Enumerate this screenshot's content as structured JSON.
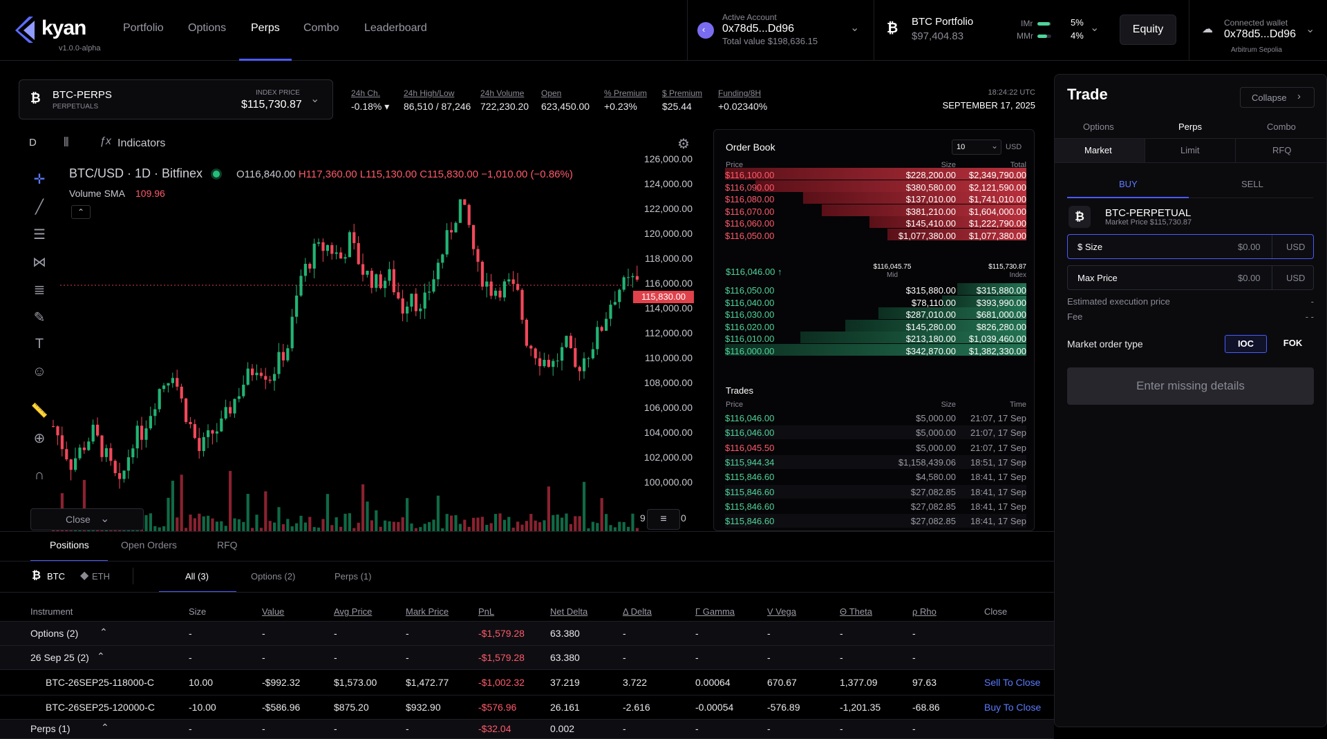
{
  "brand": {
    "name": "kyan",
    "version": "v1.0.0-alpha",
    "accent": "#5b6cff"
  },
  "nav": {
    "items": [
      "Portfolio",
      "Options",
      "Perps",
      "Combo",
      "Leaderboard"
    ],
    "active": "Perps"
  },
  "account": {
    "label": "Active Account",
    "address": "0x78d5...Dd96",
    "total": "Total value $198,636.15"
  },
  "portfolio": {
    "label": "BTC Portfolio",
    "value": "$97,404.83",
    "imr_label": "IMr",
    "imr": "5%",
    "mmr_label": "MMr",
    "mmr": "4%",
    "imr_fill": 0.45,
    "mmr_fill": 0.35
  },
  "equity_btn": "Equity",
  "wallet": {
    "label": "Connected wallet",
    "address": "0x78d5...Dd96",
    "network": "Arbitrum Sepolia"
  },
  "market": {
    "symbol": "BTC-PERPS",
    "type": "PERPETUALS",
    "index_label": "INDEX PRICE",
    "index_price": "$115,730.87"
  },
  "stats": [
    {
      "label": "24h Ch.",
      "value": "-0.18% ▾",
      "color": "red"
    },
    {
      "label": "24h High/Low",
      "value": "86,510 / 87,246",
      "color": ""
    },
    {
      "label": "24h Volume",
      "value": "722,230.20",
      "color": ""
    },
    {
      "label": "Open",
      "value": "623,450.00",
      "color": ""
    },
    {
      "label": "% Premium",
      "value": "+0.23%",
      "color": "green"
    },
    {
      "label": "$ Premium",
      "value": "$25.44",
      "color": "green"
    },
    {
      "label": "Funding/8H",
      "value": "+0.02340%",
      "color": "green"
    }
  ],
  "time": {
    "clock": "18:24:22 UTC",
    "date": "SEPTEMBER 17, 2025"
  },
  "chart": {
    "interval": "D",
    "indicators": "Indicators",
    "title": "BTC/USD · 1D · Bitfinex",
    "ohlc": {
      "o": "O116,840.00",
      "h": "H117,360.00",
      "l": "L115,130.00",
      "c": "C115,830.00",
      "chg": "−1,010.00 (−0.86%)"
    },
    "volume_label": "Volume SMA",
    "volume_value": "109.96",
    "last_price": "115,830.00",
    "price_labels": [
      "126,000.00",
      "124,000.00",
      "122,000.00",
      "120,000.00",
      "118,000.00",
      "116,000.00",
      "114,000.00",
      "112,000.00",
      "110,000.00",
      "108,000.00",
      "106,000.00",
      "104,000.00",
      "102,000.00",
      "100,000.00"
    ],
    "close_btn": "Close",
    "axis_partial_left": "9",
    "axis_partial_right": "0"
  },
  "orderbook": {
    "title": "Order Book",
    "depth": "10",
    "currency": "USD",
    "headers": {
      "price": "Price",
      "size": "Size",
      "total": "Total"
    },
    "asks": [
      {
        "price": "$116,100.00",
        "size": "$228,200.00",
        "total": "$2,349,790.00",
        "depth": 1.0
      },
      {
        "price": "$116,090.00",
        "size": "$380,580.00",
        "total": "$2,121,590.00",
        "depth": 0.9
      },
      {
        "price": "$116,080.00",
        "size": "$137,010.00",
        "total": "$1,741,010.00",
        "depth": 0.74
      },
      {
        "price": "$116,070.00",
        "size": "$381,210.00",
        "total": "$1,604,000.00",
        "depth": 0.68
      },
      {
        "price": "$116,060.00",
        "size": "$145,410.00",
        "total": "$1,222,790.00",
        "depth": 0.52
      },
      {
        "price": "$116,050.00",
        "size": "$1,077,380.00",
        "total": "$1,077,380.00",
        "depth": 0.46
      }
    ],
    "mid": {
      "price": "$116,046.00 ↑",
      "mid_value": "$116,045.75",
      "mid_label": "Mid",
      "index_value": "$115,730.87",
      "index_label": "Index"
    },
    "bids": [
      {
        "price": "$116,050.00",
        "size": "$315,880.00",
        "total": "$315,880.00",
        "depth": 0.23
      },
      {
        "price": "$116,040.00",
        "size": "$78,110.00",
        "total": "$393,990.00",
        "depth": 0.28
      },
      {
        "price": "$116,030.00",
        "size": "$287,010.00",
        "total": "$681,000.00",
        "depth": 0.49
      },
      {
        "price": "$116,020.00",
        "size": "$145,280.00",
        "total": "$826,280.00",
        "depth": 0.6
      },
      {
        "price": "$116,010.00",
        "size": "$213,180.00",
        "total": "$1,039,460.00",
        "depth": 0.75
      },
      {
        "price": "$116,000.00",
        "size": "$342,870.00",
        "total": "$1,382,330.00",
        "depth": 1.0
      }
    ],
    "trades_title": "Trades",
    "trades_headers": {
      "price": "Price",
      "size": "Size",
      "time": "Time"
    },
    "trades": [
      {
        "price": "$116,046.00",
        "size": "$5,000.00",
        "time": "21:07, 17 Sep",
        "side": "buy"
      },
      {
        "price": "$116,046.00",
        "size": "$5,000.00",
        "time": "21:07, 17 Sep",
        "side": "buy"
      },
      {
        "price": "$116,045.50",
        "size": "$5,000.00",
        "time": "21:07, 17 Sep",
        "side": "sell"
      },
      {
        "price": "$115,944.34",
        "size": "$1,158,439.06",
        "time": "18:51, 17 Sep",
        "side": "buy"
      },
      {
        "price": "$115,846.60",
        "size": "$4,580.00",
        "time": "18:41, 17 Sep",
        "side": "buy"
      },
      {
        "price": "$115,846.60",
        "size": "$27,082.85",
        "time": "18:41, 17 Sep",
        "side": "buy"
      },
      {
        "price": "$115,846.60",
        "size": "$27,082.85",
        "time": "18:41, 17 Sep",
        "side": "buy"
      },
      {
        "price": "$115,846.60",
        "size": "$27,082.85",
        "time": "18:41, 17 Sep",
        "side": "buy"
      }
    ]
  },
  "trade": {
    "title": "Trade",
    "collapse": "Collapse",
    "product_tabs": [
      "Options",
      "Perps",
      "Combo"
    ],
    "product_active": "Perps",
    "order_tabs": [
      "Market",
      "Limit",
      "RFQ"
    ],
    "order_active": "Market",
    "buy": "BUY",
    "sell": "SELL",
    "instrument": "BTC-PERPETUAL",
    "market_price": "Market Price $115,730.87",
    "size_label": "$ Size",
    "size_value": "$0.00",
    "size_unit": "USD",
    "max_label": "Max Price",
    "max_value": "$0.00",
    "max_unit": "USD",
    "est_label": "Estimated execution price",
    "est_value": "-",
    "fee_label": "Fee",
    "fee_value": "- -",
    "order_type_label": "Market order type",
    "ioc": "IOC",
    "fok": "FOK",
    "submit": "Enter missing details"
  },
  "positions": {
    "tabs": [
      "Positions",
      "Open Orders",
      "RFQ"
    ],
    "active": "Positions",
    "assets": [
      "BTC",
      "ETH"
    ],
    "filters": [
      "All (3)",
      "Options (2)",
      "Perps (1)"
    ],
    "headers": [
      "Instrument",
      "Size",
      "Value",
      "Avg Price",
      "Mark Price",
      "PnL",
      "Net Delta",
      "Δ Delta",
      "Γ Gamma",
      "V Vega",
      "Θ Theta",
      "ρ Rho",
      "Close"
    ],
    "rows": [
      {
        "instrument": "Options (2)",
        "size": "-",
        "value": "-",
        "avg": "-",
        "mark": "-",
        "pnl": "-$1,579.28",
        "net_delta": "63.380",
        "delta": "-",
        "gamma": "-",
        "vega": "-",
        "theta": "-",
        "rho": "-",
        "close": "",
        "group": true
      },
      {
        "instrument": "26 Sep 25 (2)",
        "size": "-",
        "value": "-",
        "avg": "-",
        "mark": "-",
        "pnl": "-$1,579.28",
        "net_delta": "63.380",
        "delta": "-",
        "gamma": "-",
        "vega": "-",
        "theta": "-",
        "rho": "-",
        "close": "",
        "group": true
      },
      {
        "instrument": "BTC-26SEP25-118000-C",
        "size": "10.00",
        "value": "-$992.32",
        "avg": "$1,573.00",
        "mark": "$1,472.77",
        "pnl": "-$1,002.32",
        "net_delta": "37.219",
        "delta": "3.722",
        "gamma": "0.00064",
        "vega": "670.67",
        "theta": "1,377.09",
        "rho": "97.63",
        "close": "Sell To Close",
        "group": false
      },
      {
        "instrument": "BTC-26SEP25-120000-C",
        "size": "-10.00",
        "value": "-$586.96",
        "avg": "$875.20",
        "mark": "$932.90",
        "pnl": "-$576.96",
        "net_delta": "26.161",
        "delta": "-2.616",
        "gamma": "-0.00054",
        "vega": "-576.89",
        "theta": "-1,201.35",
        "rho": "-68.86",
        "close": "Buy To Close",
        "group": false
      },
      {
        "instrument": "Perps (1)",
        "size": "-",
        "value": "-",
        "avg": "-",
        "mark": "-",
        "pnl": "-$32.04",
        "net_delta": "0.002",
        "delta": "-",
        "gamma": "-",
        "vega": "-",
        "theta": "-",
        "rho": "-",
        "close": "",
        "group": true
      }
    ]
  }
}
